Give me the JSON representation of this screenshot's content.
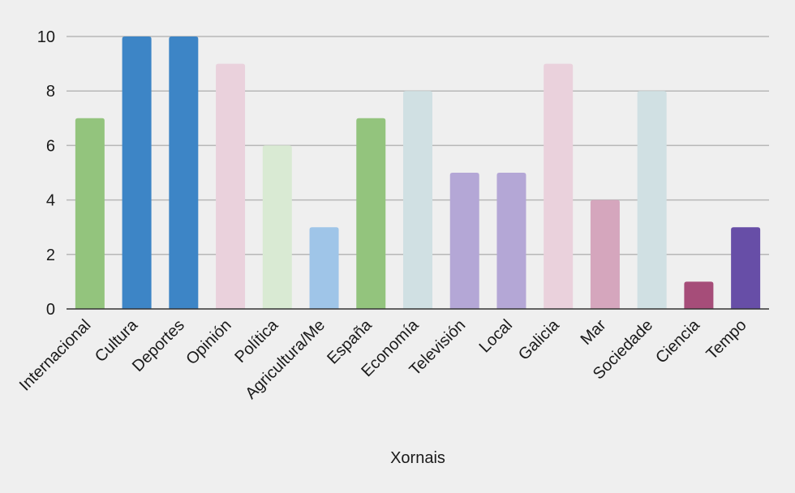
{
  "chart_data": {
    "type": "bar",
    "title": "",
    "xlabel": "Xornais",
    "ylabel": "",
    "ylim": [
      0,
      10
    ],
    "yticks": [
      0,
      2,
      4,
      6,
      8,
      10
    ],
    "grid": true,
    "categories": [
      "Internacional",
      "Cultura",
      "Deportes",
      "Opinión",
      "Política",
      "Agricultura/Me",
      "España",
      "Economía",
      "Televisión",
      "Local",
      "Galicia",
      "Mar",
      "Sociedade",
      "Ciencia",
      "Tempo"
    ],
    "values": [
      7,
      10,
      10,
      9,
      6,
      3,
      7,
      8,
      5,
      5,
      9,
      4,
      8,
      1,
      3
    ],
    "colors": [
      "#93c47d",
      "#3d85c6",
      "#3d85c6",
      "#ead1dc",
      "#d9ead3",
      "#9fc5e8",
      "#93c47d",
      "#d0e0e3",
      "#b4a7d6",
      "#b4a7d6",
      "#ead1dc",
      "#d5a6bd",
      "#d0e0e3",
      "#a64d79",
      "#674ea7"
    ]
  }
}
